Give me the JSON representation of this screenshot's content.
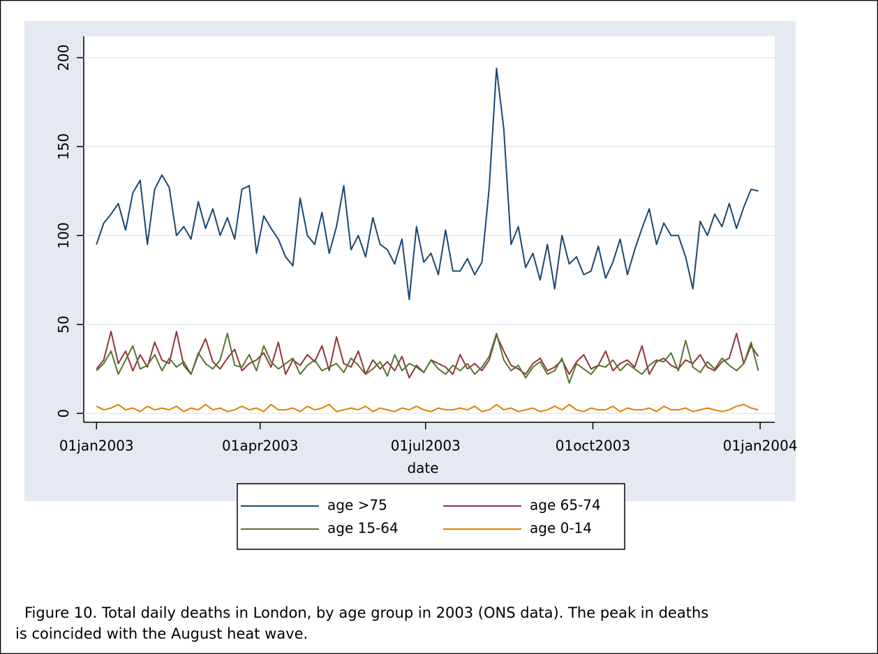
{
  "chart_data": {
    "type": "line",
    "xlabel": "date",
    "caption": [
      "Figure 10. Total daily deaths in London, by age group in 2003 (ONS data). The peak in deaths",
      "is coincided with the August heat wave."
    ],
    "x": [
      15706,
      15710,
      15714,
      15718,
      15722,
      15726,
      15730,
      15734,
      15738,
      15742,
      15746,
      15750,
      15754,
      15758,
      15762,
      15766,
      15770,
      15774,
      15778,
      15782,
      15786,
      15790,
      15794,
      15798,
      15802,
      15806,
      15810,
      15814,
      15818,
      15822,
      15826,
      15830,
      15834,
      15838,
      15842,
      15846,
      15850,
      15854,
      15858,
      15862,
      15866,
      15870,
      15874,
      15878,
      15882,
      15886,
      15890,
      15894,
      15898,
      15902,
      15906,
      15910,
      15914,
      15918,
      15922,
      15926,
      15930,
      15934,
      15938,
      15942,
      15946,
      15950,
      15954,
      15958,
      15962,
      15966,
      15970,
      15974,
      15978,
      15982,
      15986,
      15990,
      15994,
      15998,
      16002,
      16006,
      16010,
      16014,
      16018,
      16022,
      16026,
      16030,
      16034,
      16038,
      16042,
      16046,
      16050,
      16054,
      16058,
      16062,
      16066,
      16070
    ],
    "series": [
      {
        "name": "age >75",
        "color": "#1a476f",
        "values": [
          95,
          107,
          112,
          118,
          103,
          124,
          131,
          95,
          126,
          134,
          127,
          100,
          105,
          98,
          119,
          104,
          115,
          100,
          110,
          98,
          126,
          128,
          90,
          111,
          104,
          98,
          88,
          83,
          121,
          100,
          95,
          113,
          90,
          105,
          128,
          92,
          100,
          88,
          110,
          95,
          92,
          84,
          98,
          64,
          105,
          85,
          90,
          78,
          103,
          80,
          80,
          87,
          78,
          85,
          127,
          194,
          160,
          95,
          105,
          82,
          90,
          75,
          95,
          70,
          100,
          84,
          88,
          78,
          80,
          94,
          76,
          85,
          98,
          78,
          92,
          104,
          115,
          95,
          107,
          100,
          100,
          88,
          70,
          108,
          100,
          112,
          105,
          118,
          104,
          116,
          126,
          125
        ]
      },
      {
        "name": "age 65-74",
        "color": "#90353b",
        "values": [
          25,
          30,
          46,
          28,
          35,
          24,
          33,
          26,
          40,
          30,
          28,
          46,
          27,
          22,
          33,
          42,
          29,
          25,
          31,
          36,
          24,
          28,
          30,
          34,
          26,
          40,
          22,
          30,
          27,
          33,
          29,
          38,
          24,
          43,
          28,
          26,
          35,
          22,
          30,
          25,
          29,
          24,
          32,
          20,
          27,
          23,
          30,
          28,
          26,
          22,
          33,
          25,
          28,
          24,
          30,
          44,
          35,
          27,
          25,
          22,
          28,
          31,
          24,
          26,
          30,
          22,
          29,
          33,
          25,
          27,
          35,
          24,
          28,
          30,
          26,
          38,
          22,
          29,
          31,
          27,
          25,
          30,
          28,
          33,
          26,
          24,
          29,
          31,
          45,
          28,
          38,
          32
        ]
      },
      {
        "name": "age 15-64",
        "color": "#55752f",
        "values": [
          24,
          28,
          35,
          22,
          30,
          38,
          25,
          27,
          33,
          24,
          31,
          26,
          29,
          22,
          34,
          28,
          25,
          30,
          45,
          27,
          26,
          33,
          24,
          38,
          29,
          25,
          28,
          31,
          22,
          27,
          30,
          24,
          26,
          28,
          23,
          31,
          27,
          22,
          25,
          29,
          21,
          33,
          24,
          28,
          26,
          23,
          30,
          25,
          22,
          27,
          24,
          28,
          22,
          26,
          32,
          45,
          30,
          24,
          27,
          20,
          26,
          29,
          22,
          24,
          31,
          17,
          28,
          25,
          22,
          27,
          26,
          30,
          24,
          28,
          25,
          22,
          27,
          30,
          29,
          34,
          24,
          41,
          26,
          23,
          29,
          25,
          31,
          27,
          24,
          28,
          40,
          24
        ]
      },
      {
        "name": "age 0-14",
        "color": "#e37e00",
        "values": [
          4,
          2,
          3,
          5,
          2,
          3,
          1,
          4,
          2,
          3,
          2,
          4,
          1,
          3,
          2,
          5,
          2,
          3,
          1,
          2,
          4,
          2,
          3,
          1,
          5,
          2,
          2,
          3,
          1,
          4,
          2,
          3,
          5,
          1,
          2,
          3,
          2,
          4,
          1,
          3,
          2,
          1,
          3,
          2,
          4,
          2,
          1,
          3,
          2,
          2,
          3,
          2,
          4,
          1,
          2,
          5,
          2,
          3,
          1,
          2,
          3,
          1,
          2,
          4,
          2,
          5,
          2,
          1,
          3,
          2,
          2,
          4,
          1,
          3,
          2,
          2,
          3,
          1,
          4,
          2,
          2,
          3,
          1,
          2,
          3,
          2,
          1,
          2,
          4,
          5,
          3,
          2
        ]
      }
    ],
    "xlim": [
      15699,
      16079
    ],
    "xticks": [
      {
        "value": 15706,
        "label": "01jan2003"
      },
      {
        "value": 15796,
        "label": "01apr2003"
      },
      {
        "value": 15887,
        "label": "01jul2003"
      },
      {
        "value": 15979,
        "label": "01oct2003"
      },
      {
        "value": 16071,
        "label": "01jan2004"
      }
    ],
    "ylim": [
      -5,
      212
    ],
    "yticks": [
      0,
      50,
      100,
      150,
      200
    ],
    "grid": true
  }
}
